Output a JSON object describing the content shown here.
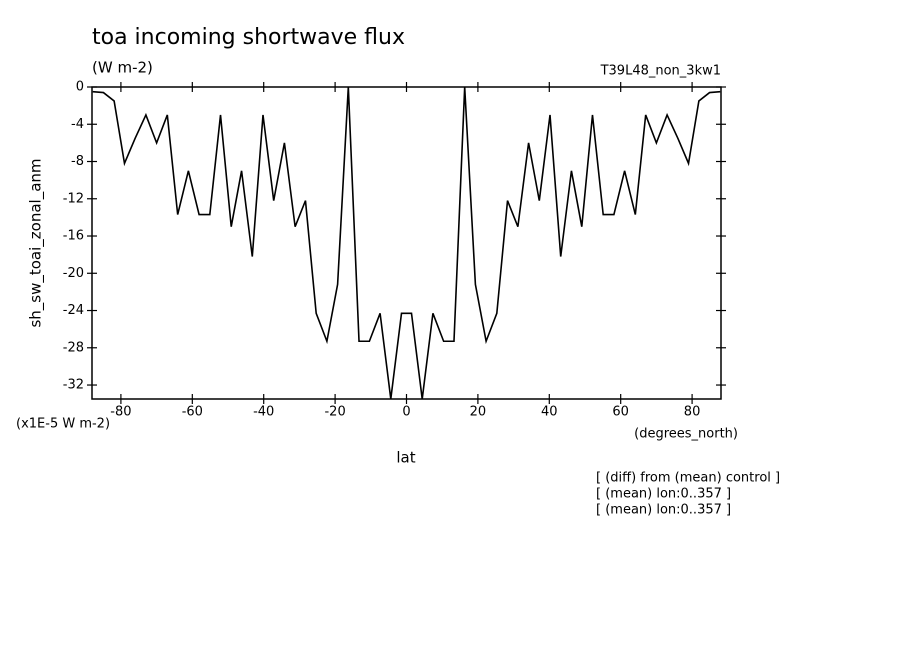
{
  "chart_data": {
    "type": "line",
    "title": "toa incoming shortwave flux",
    "subtitle": "(W m-2)",
    "run_label": "T39L48_non_3kw1",
    "ylabel": "sh_sw_toai_zonal_anm",
    "y_units": "(x1E-5 W m-2)",
    "x_units": "(degrees_north)",
    "xlabel": "lat",
    "notes": [
      "[ (diff) from (mean) control ]",
      "[ (mean) lon:0..357 ]",
      "[ (mean) lon:0..357 ]"
    ],
    "xlim": [
      -88.1,
      88.1
    ],
    "ylim": [
      -33.5,
      0
    ],
    "xticks": [
      -80,
      -60,
      -40,
      -20,
      0,
      20,
      40,
      60,
      80
    ],
    "yticks": [
      0,
      -4,
      -8,
      -12,
      -16,
      -20,
      -24,
      -28,
      -32
    ],
    "x": [
      -87.9,
      -84.9,
      -81.9,
      -79.0,
      -76.0,
      -73.0,
      -70.0,
      -67.0,
      -64.1,
      -61.1,
      -58.1,
      -55.1,
      -52.1,
      -49.1,
      -46.2,
      -43.2,
      -40.2,
      -37.2,
      -34.2,
      -31.2,
      -28.3,
      -25.3,
      -22.3,
      -19.3,
      -16.3,
      -13.3,
      -10.4,
      -7.4,
      -4.4,
      -1.4,
      1.4,
      4.4,
      7.4,
      10.4,
      13.3,
      16.3,
      19.3,
      22.3,
      25.3,
      28.3,
      31.2,
      34.2,
      37.2,
      40.2,
      43.2,
      46.2,
      49.1,
      52.1,
      55.1,
      58.1,
      61.1,
      64.1,
      67.0,
      70.0,
      73.0,
      76.0,
      79.0,
      81.9,
      84.9,
      87.9
    ],
    "series": [
      {
        "color": "#000000",
        "values": [
          -0.5,
          -0.6,
          -1.5,
          -8.2,
          -5.5,
          -3,
          -6,
          -3,
          -13.7,
          -9,
          -13.7,
          -13.7,
          -3,
          -15,
          -9,
          -18.2,
          -3,
          -12.2,
          -6,
          -15,
          -12.2,
          -24.3,
          -27.3,
          -21.2,
          0,
          -27.3,
          -27.3,
          -24.3,
          -33.5,
          -24.3,
          -24.3,
          -33.5,
          -24.3,
          -27.3,
          -27.3,
          0,
          -21.2,
          -27.3,
          -24.3,
          -12.2,
          -15,
          -6,
          -12.2,
          -3,
          -18.2,
          -9,
          -15,
          -3,
          -13.7,
          -13.7,
          -9,
          -13.7,
          -3,
          -6,
          -3,
          -5.5,
          -8.2,
          -1.5,
          -0.6,
          -0.5
        ]
      }
    ]
  }
}
